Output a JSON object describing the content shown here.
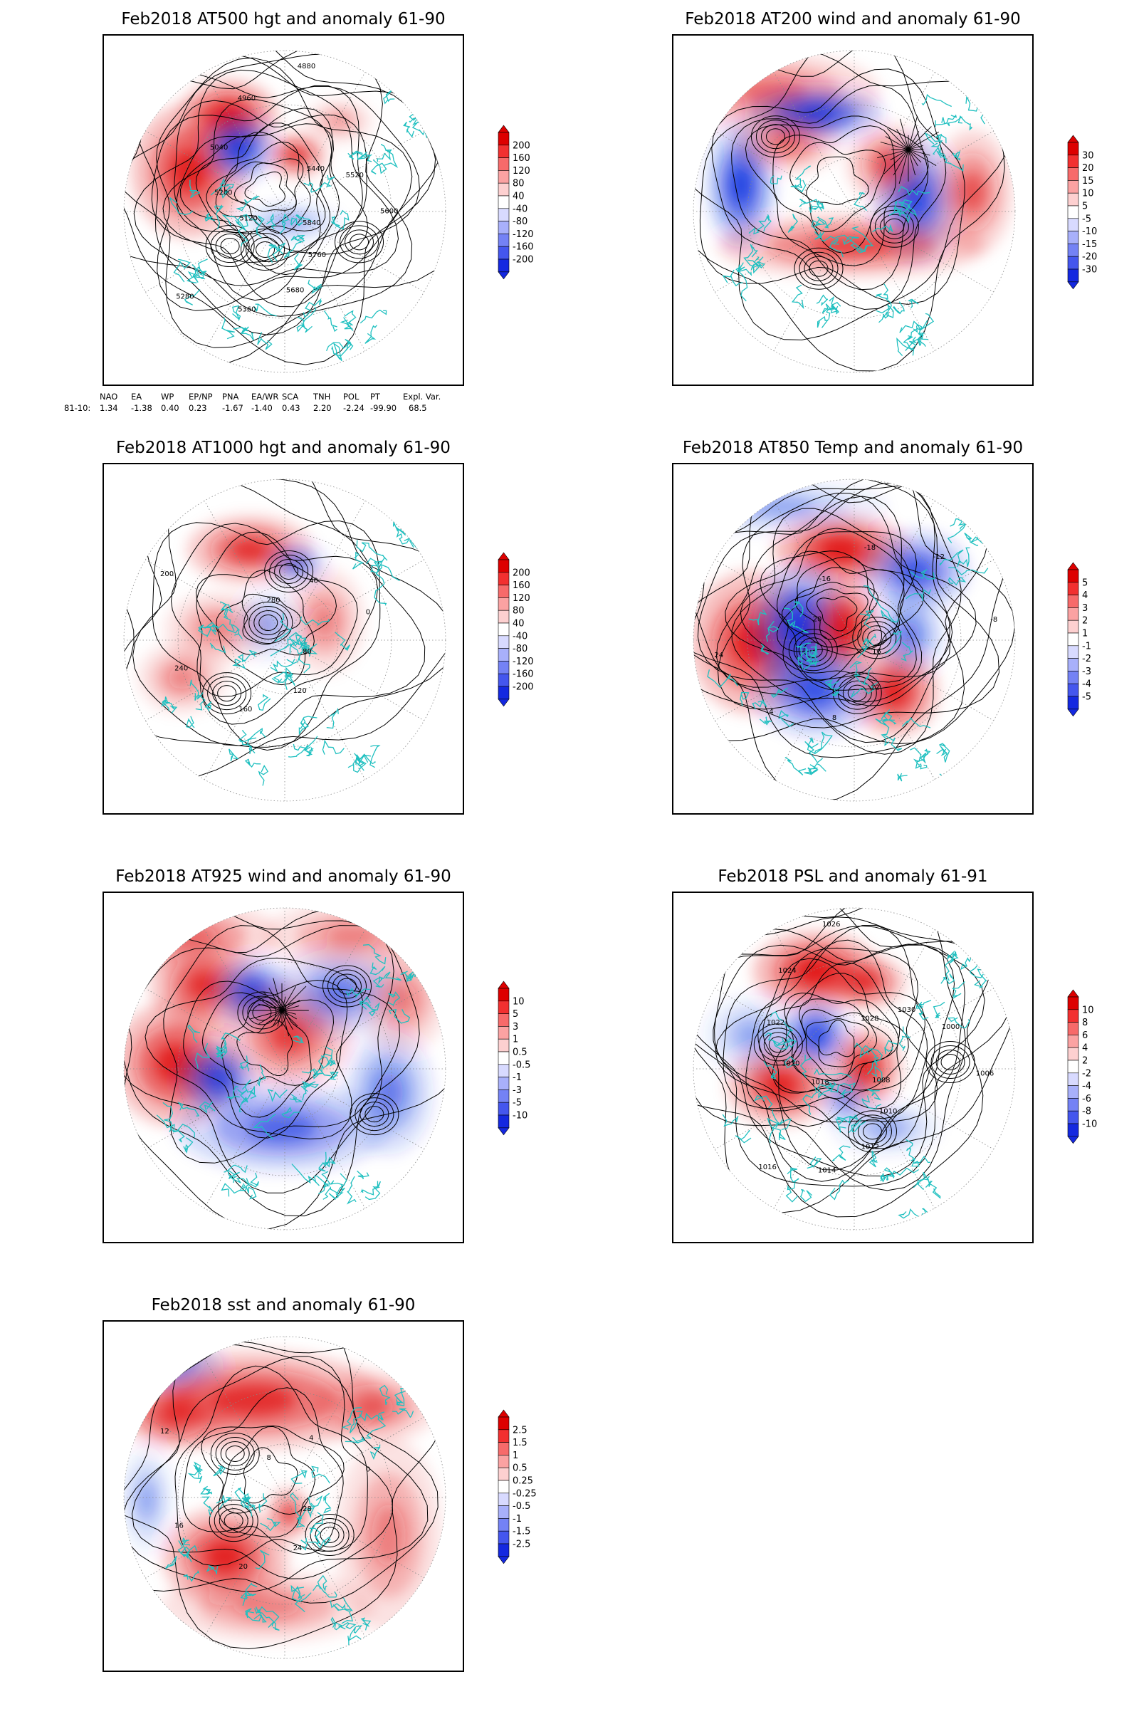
{
  "panels": [
    {
      "id": "p500",
      "title": "Feb2018 AT500 hgt and anomaly 61-90",
      "colorbar": [
        "200",
        "160",
        "120",
        "80",
        "40",
        "-40",
        "-80",
        "-120",
        "-160",
        "-200"
      ],
      "contour_labels": [
        "5840",
        "5760",
        "5680",
        "5360",
        "5280",
        "5120",
        "5200",
        "5040",
        "4960",
        "4880",
        "5440",
        "5520",
        "5600"
      ]
    },
    {
      "id": "p200",
      "title": "Feb2018 AT200 wind and anomaly 61-90",
      "colorbar": [
        "30",
        "20",
        "15",
        "10",
        "5",
        "-5",
        "-10",
        "-15",
        "-20",
        "-30"
      ],
      "contour_labels": []
    },
    {
      "id": "p1000",
      "title": "Feb2018 AT1000 hgt and anomaly 61-90",
      "colorbar": [
        "200",
        "160",
        "120",
        "80",
        "40",
        "-40",
        "-80",
        "-120",
        "-160",
        "-200"
      ],
      "contour_labels": [
        "80",
        "120",
        "160",
        "240",
        "200",
        "280",
        "40",
        "0"
      ]
    },
    {
      "id": "p850",
      "title": "Feb2018 AT850 Temp and anomaly 61-90",
      "colorbar": [
        "5",
        "4",
        "3",
        "2",
        "1",
        "-1",
        "-2",
        "-3",
        "-4",
        "-5"
      ],
      "contour_labels": [
        "16",
        "12",
        "8",
        "4",
        "24",
        "20",
        "-16",
        "-18",
        "-12",
        "-8"
      ]
    },
    {
      "id": "p925",
      "title": "Feb2018 AT925 wind and anomaly 61-90",
      "colorbar": [
        "10",
        "5",
        "3",
        "1",
        "0.5",
        "-0.5",
        "-1",
        "-3",
        "-5",
        "-10"
      ],
      "contour_labels": []
    },
    {
      "id": "psl",
      "title": "Feb2018 PSL and anomaly 61-91",
      "colorbar": [
        "10",
        "8",
        "6",
        "4",
        "2",
        "-2",
        "-4",
        "-6",
        "-8",
        "-10"
      ],
      "contour_labels": [
        "1008",
        "1010",
        "1012",
        "1014",
        "1016",
        "1018",
        "1020",
        "1022",
        "1024",
        "1026",
        "1028",
        "1030",
        "1000",
        "1006"
      ]
    },
    {
      "id": "sst",
      "title": "Feb2018 sst and anomaly 61-90",
      "colorbar": [
        "2.5",
        "1.5",
        "1",
        "0.5",
        "0.25",
        "-0.25",
        "-0.5",
        "-1",
        "-1.5",
        "-2.5"
      ],
      "contour_labels": [
        "28",
        "24",
        "20",
        "16",
        "12",
        "8",
        "4",
        "0"
      ]
    }
  ],
  "teleconnections": {
    "headers": [
      "NAO",
      "EA",
      "WP",
      "EP/NP",
      "PNA",
      "EA/WR",
      "SCA",
      "TNH",
      "POL",
      "PT",
      "Expl. Var."
    ],
    "row_label": "81-10:",
    "values": [
      "1.34",
      "-1.38",
      "0.40",
      "0.23",
      "-1.67",
      "-1.40",
      "0.43",
      "2.20",
      "-2.24",
      "-99.90",
      "68.5"
    ]
  },
  "colors": {
    "positive": "#e01010",
    "negative": "#1030e0",
    "coast": "#20c0c0",
    "contour": "#000000"
  }
}
